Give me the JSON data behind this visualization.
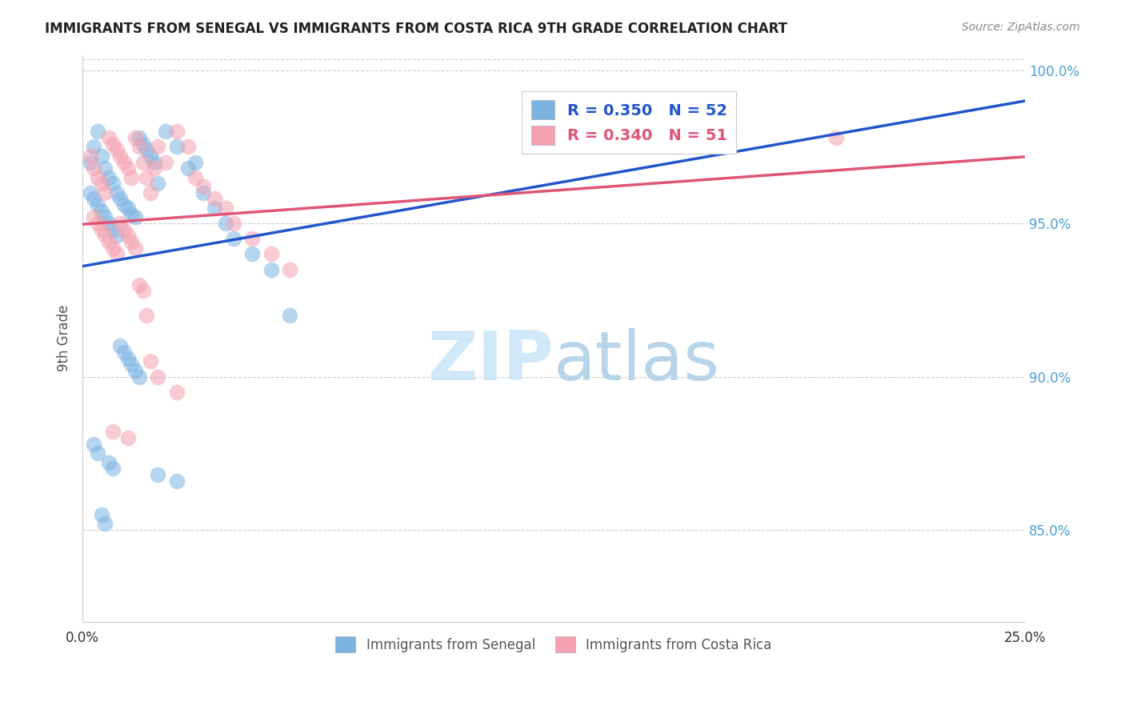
{
  "title": "IMMIGRANTS FROM SENEGAL VS IMMIGRANTS FROM COSTA RICA 9TH GRADE CORRELATION CHART",
  "source": "Source: ZipAtlas.com",
  "ylabel": "9th Grade",
  "ylabel_right_ticks": [
    "85.0%",
    "90.0%",
    "95.0%",
    "100.0%"
  ],
  "ylabel_right_vals": [
    0.85,
    0.9,
    0.95,
    1.0
  ],
  "xmin": 0.0,
  "xmax": 0.25,
  "ymin": 0.82,
  "ymax": 1.005,
  "senegal_R": 0.35,
  "senegal_N": 52,
  "costarica_R": 0.34,
  "costarica_N": 51,
  "senegal_color": "#7ab3e0",
  "costarica_color": "#f4a0b0",
  "senegal_line_color": "#2255cc",
  "costarica_line_color": "#e05575",
  "watermark_zip_color": "#d0e8f8",
  "watermark_atlas_color": "#b8d4e8",
  "legend_label_senegal": "Immigrants from Senegal",
  "legend_label_costarica": "Immigrants from Costa Rica",
  "senegal_x": [
    0.002,
    0.003,
    0.004,
    0.005,
    0.006,
    0.007,
    0.008,
    0.009,
    0.01,
    0.011,
    0.012,
    0.013,
    0.014,
    0.015,
    0.016,
    0.017,
    0.018,
    0.019,
    0.02,
    0.022,
    0.025,
    0.028,
    0.03,
    0.032,
    0.035,
    0.038,
    0.04,
    0.045,
    0.05,
    0.055,
    0.002,
    0.003,
    0.004,
    0.005,
    0.006,
    0.007,
    0.008,
    0.009,
    0.01,
    0.011,
    0.012,
    0.013,
    0.014,
    0.015,
    0.003,
    0.004,
    0.007,
    0.008,
    0.02,
    0.025,
    0.005,
    0.006
  ],
  "senegal_y": [
    0.97,
    0.975,
    0.98,
    0.972,
    0.968,
    0.965,
    0.963,
    0.96,
    0.958,
    0.956,
    0.955,
    0.953,
    0.952,
    0.978,
    0.976,
    0.974,
    0.972,
    0.97,
    0.963,
    0.98,
    0.975,
    0.968,
    0.97,
    0.96,
    0.955,
    0.95,
    0.945,
    0.94,
    0.935,
    0.92,
    0.96,
    0.958,
    0.956,
    0.954,
    0.952,
    0.95,
    0.948,
    0.946,
    0.91,
    0.908,
    0.906,
    0.904,
    0.902,
    0.9,
    0.878,
    0.875,
    0.872,
    0.87,
    0.868,
    0.866,
    0.855,
    0.852
  ],
  "costarica_x": [
    0.002,
    0.003,
    0.004,
    0.005,
    0.006,
    0.007,
    0.008,
    0.009,
    0.01,
    0.011,
    0.012,
    0.013,
    0.014,
    0.015,
    0.016,
    0.017,
    0.018,
    0.019,
    0.02,
    0.022,
    0.025,
    0.028,
    0.03,
    0.032,
    0.035,
    0.038,
    0.04,
    0.045,
    0.05,
    0.055,
    0.003,
    0.004,
    0.005,
    0.006,
    0.007,
    0.008,
    0.009,
    0.01,
    0.011,
    0.012,
    0.013,
    0.014,
    0.015,
    0.016,
    0.017,
    0.018,
    0.02,
    0.025,
    0.008,
    0.012,
    0.2
  ],
  "costarica_y": [
    0.972,
    0.968,
    0.965,
    0.963,
    0.96,
    0.978,
    0.976,
    0.974,
    0.972,
    0.97,
    0.968,
    0.965,
    0.978,
    0.975,
    0.97,
    0.965,
    0.96,
    0.968,
    0.975,
    0.97,
    0.98,
    0.975,
    0.965,
    0.962,
    0.958,
    0.955,
    0.95,
    0.945,
    0.94,
    0.935,
    0.952,
    0.95,
    0.948,
    0.946,
    0.944,
    0.942,
    0.94,
    0.95,
    0.948,
    0.946,
    0.944,
    0.942,
    0.93,
    0.928,
    0.92,
    0.905,
    0.9,
    0.895,
    0.882,
    0.88,
    0.978
  ]
}
